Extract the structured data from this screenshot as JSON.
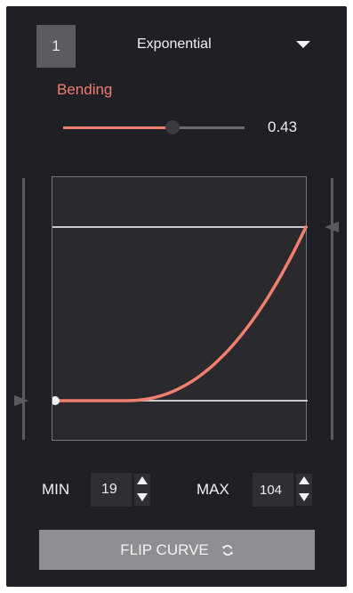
{
  "header": {
    "channel_number": "1",
    "curve_type": "Exponential"
  },
  "bending": {
    "label": "Bending",
    "value_text": "0.43",
    "value": 0.43
  },
  "range": {
    "min_label": "MIN",
    "min_value": "19",
    "max_label": "MAX",
    "max_value": "104"
  },
  "flip_button": {
    "label": "FLIP CURVE"
  },
  "colors": {
    "accent": "#f0806d",
    "panel": "#1f2026",
    "graph_bg": "#2a292d",
    "button": "#8e8f93"
  },
  "icons": {
    "dropdown": "chevron-down-icon",
    "flip": "refresh-icon"
  }
}
